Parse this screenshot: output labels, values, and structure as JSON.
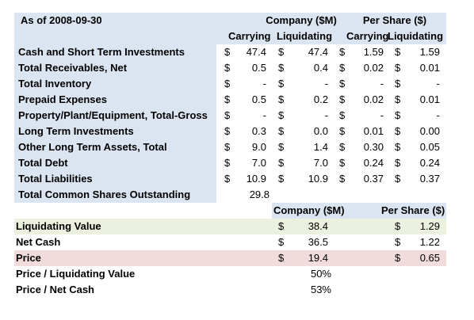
{
  "top_table": {
    "as_of_label": "As of 2008-09-30",
    "group_headers": {
      "company": "Company ($M)",
      "per_share": "Per Share ($)"
    },
    "sub_headers": {
      "company_carrying": "Carrying",
      "company_liquidating": "Liquidating",
      "ps_carrying": "Carrying",
      "ps_liquidating": "Liquidating"
    },
    "currency_symbol": "$",
    "rows": [
      {
        "label": "Cash and Short Term Investments",
        "c_carry": "47.4",
        "c_liq": "47.4",
        "ps_carry": "1.59",
        "ps_liq": "1.59"
      },
      {
        "label": "Total Receivables, Net",
        "c_carry": "0.5",
        "c_liq": "0.4",
        "ps_carry": "0.02",
        "ps_liq": "0.01"
      },
      {
        "label": "Total Inventory",
        "c_carry": "-",
        "c_liq": "-",
        "ps_carry": "-",
        "ps_liq": "-"
      },
      {
        "label": "Prepaid Expenses",
        "c_carry": "0.5",
        "c_liq": "0.2",
        "ps_carry": "0.02",
        "ps_liq": "0.01"
      },
      {
        "label": "Property/Plant/Equipment, Total-Gross",
        "c_carry": "-",
        "c_liq": "-",
        "ps_carry": "-",
        "ps_liq": "-"
      },
      {
        "label": "Long Term Investments",
        "c_carry": "0.3",
        "c_liq": "0.0",
        "ps_carry": "0.01",
        "ps_liq": "0.00"
      },
      {
        "label": "Other Long Term Assets, Total",
        "c_carry": "9.0",
        "c_liq": "1.4",
        "ps_carry": "0.30",
        "ps_liq": "0.05"
      },
      {
        "label": "Total Debt",
        "c_carry": "7.0",
        "c_liq": "7.0",
        "ps_carry": "0.24",
        "ps_liq": "0.24"
      },
      {
        "label": "Total Liabilities",
        "c_carry": "10.9",
        "c_liq": "10.9",
        "ps_carry": "0.37",
        "ps_liq": "0.37"
      }
    ],
    "shares_outstanding": {
      "label": "Total Common Shares Outstanding",
      "value": "29.8"
    }
  },
  "bottom_table": {
    "headers": {
      "company": "Company ($M)",
      "per_share": "Per Share ($)"
    },
    "currency_symbol": "$",
    "rows": [
      {
        "label": "Liquidating Value",
        "company": "38.4",
        "per_share": "1.29"
      },
      {
        "label": "Net Cash",
        "company": "36.5",
        "per_share": "1.22"
      },
      {
        "label": "Price",
        "company": "19.4",
        "per_share": "0.65"
      }
    ],
    "ratios": [
      {
        "label": "Price / Liquidating Value",
        "value": "50%"
      },
      {
        "label": "Price / Net Cash",
        "value": "53%"
      }
    ]
  },
  "colors": {
    "header_blue": "#dbe5f1",
    "liquidating_green": "#ebf1de",
    "price_red": "#f2dcdb"
  }
}
